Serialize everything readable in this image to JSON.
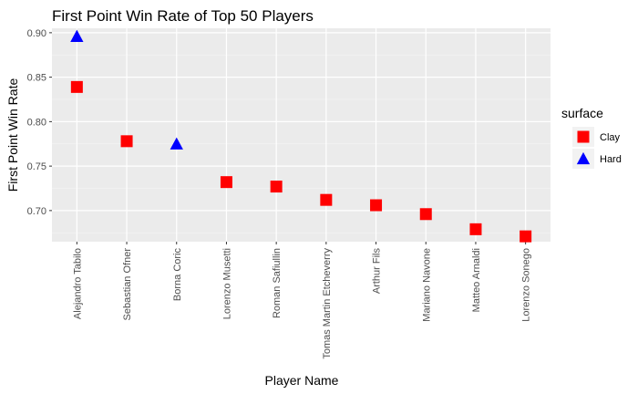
{
  "chart_data": {
    "type": "scatter",
    "title": "First Point Win Rate of Top 50 Players",
    "xlabel": "Player Name",
    "ylabel": "First Point Win Rate",
    "ylim": [
      0.665,
      0.905
    ],
    "yticks": [
      0.7,
      0.75,
      0.8,
      0.85,
      0.9
    ],
    "ytick_labels": [
      "0.70",
      "0.75",
      "0.80",
      "0.85",
      "0.90"
    ],
    "grid": true,
    "categories": [
      "Alejandro Tabilo",
      "Sebastian Ofner",
      "Borna Coric",
      "Lorenzo Musetti",
      "Roman Safiullin",
      "Tomas Martin Etcheverry",
      "Arthur Fils",
      "Mariano Navone",
      "Matteo Arnaldi",
      "Lorenzo Sonego"
    ],
    "series": [
      {
        "name": "Clay",
        "shape": "square",
        "color": "#ff0000",
        "points": [
          {
            "x": "Alejandro Tabilo",
            "y": 0.839
          },
          {
            "x": "Sebastian Ofner",
            "y": 0.778
          },
          {
            "x": "Lorenzo Musetti",
            "y": 0.732
          },
          {
            "x": "Roman Safiullin",
            "y": 0.727
          },
          {
            "x": "Tomas Martin Etcheverry",
            "y": 0.712
          },
          {
            "x": "Arthur Fils",
            "y": 0.706
          },
          {
            "x": "Mariano Navone",
            "y": 0.696
          },
          {
            "x": "Matteo Arnaldi",
            "y": 0.679
          },
          {
            "x": "Lorenzo Sonego",
            "y": 0.671
          }
        ]
      },
      {
        "name": "Hard",
        "shape": "triangle",
        "color": "#0000ff",
        "points": [
          {
            "x": "Alejandro Tabilo",
            "y": 0.896
          },
          {
            "x": "Borna Coric",
            "y": 0.775
          }
        ]
      }
    ],
    "legend": {
      "title": "surface",
      "position": "right"
    }
  }
}
